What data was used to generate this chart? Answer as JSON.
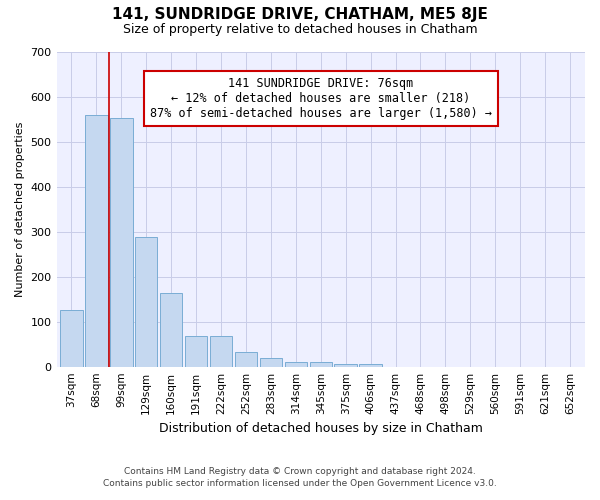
{
  "title": "141, SUNDRIDGE DRIVE, CHATHAM, ME5 8JE",
  "subtitle": "Size of property relative to detached houses in Chatham",
  "xlabel": "Distribution of detached houses by size in Chatham",
  "ylabel": "Number of detached properties",
  "categories": [
    "37sqm",
    "68sqm",
    "99sqm",
    "129sqm",
    "160sqm",
    "191sqm",
    "222sqm",
    "252sqm",
    "283sqm",
    "314sqm",
    "345sqm",
    "375sqm",
    "406sqm",
    "437sqm",
    "468sqm",
    "498sqm",
    "529sqm",
    "560sqm",
    "591sqm",
    "621sqm",
    "652sqm"
  ],
  "bar_heights": [
    126,
    558,
    553,
    288,
    163,
    68,
    68,
    33,
    20,
    10,
    10,
    5,
    5,
    0,
    0,
    0,
    0,
    0,
    0,
    0,
    0
  ],
  "bar_color": "#c5d8f0",
  "bar_edge_color": "#7aadd4",
  "vline_x": 1.5,
  "vline_color": "#cc0000",
  "annotation_text": "141 SUNDRIDGE DRIVE: 76sqm\n← 12% of detached houses are smaller (218)\n87% of semi-detached houses are larger (1,580) →",
  "annotation_box_facecolor": "#ffffff",
  "annotation_box_edgecolor": "#cc0000",
  "ylim": [
    0,
    700
  ],
  "yticks": [
    0,
    100,
    200,
    300,
    400,
    500,
    600,
    700
  ],
  "footer_line1": "Contains HM Land Registry data © Crown copyright and database right 2024.",
  "footer_line2": "Contains public sector information licensed under the Open Government Licence v3.0.",
  "plot_bg": "#eef0ff",
  "grid_color": "#c8cce8"
}
